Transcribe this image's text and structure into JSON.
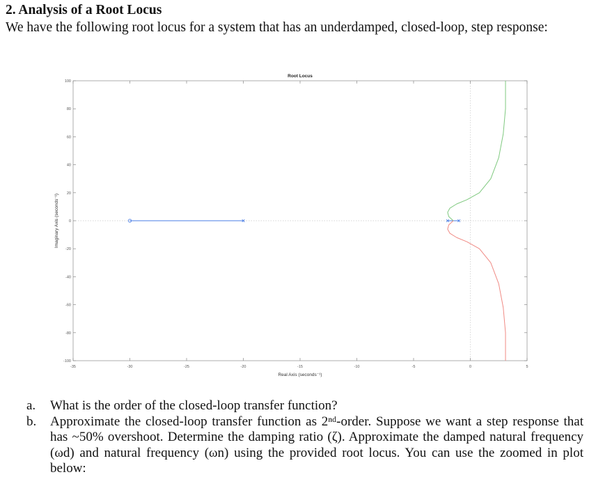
{
  "section": {
    "heading": "2. Analysis of a Root Locus",
    "intro": "We have the following root locus for a system that has an underdamped, closed-loop, step response:"
  },
  "chart_data": {
    "type": "line",
    "title": "Root Locus",
    "xlabel": "Real Axis (seconds⁻¹)",
    "ylabel": "Imaginary Axis (seconds⁻¹)",
    "xlim": [
      -35,
      5
    ],
    "ylim": [
      -100,
      100
    ],
    "xticks": [
      "-35",
      "-30",
      "-25",
      "-20",
      "-15",
      "-10",
      "-5",
      "0",
      "5"
    ],
    "yticks": [
      "100",
      "80",
      "60",
      "40",
      "20",
      "0",
      "-20",
      "-40",
      "-60",
      "-80",
      "-100"
    ],
    "grid": false,
    "poles": [
      [
        -20,
        0
      ],
      [
        -2,
        0
      ],
      [
        -1,
        0
      ]
    ],
    "zeros": [
      [
        -30,
        0
      ]
    ],
    "series": [
      {
        "color": "#4a7ee6",
        "x": [
          -20,
          -30
        ],
        "y": [
          0,
          0
        ]
      },
      {
        "color": "#4a7ee6",
        "x": [
          -2,
          -1.5
        ],
        "y": [
          0,
          0
        ]
      },
      {
        "color": "#4a7ee6",
        "x": [
          -1,
          -1.5
        ],
        "y": [
          0,
          0
        ]
      },
      {
        "color": "#7fc97f",
        "x": [
          -1.5,
          -1.9,
          -2.0,
          -1.8,
          -1.2,
          -0.3,
          0.8,
          1.8,
          2.5,
          2.9,
          3.1,
          3.1
        ],
        "y": [
          0,
          3,
          6,
          9,
          12,
          15,
          20,
          30,
          45,
          62,
          80,
          100
        ]
      },
      {
        "color": "#f08a84",
        "x": [
          -1.5,
          -1.9,
          -2.0,
          -1.8,
          -1.2,
          -0.3,
          0.8,
          1.8,
          2.5,
          2.9,
          3.1,
          3.1
        ],
        "y": [
          0,
          -3,
          -6,
          -9,
          -12,
          -15,
          -20,
          -30,
          -45,
          -62,
          -80,
          -100
        ]
      }
    ]
  },
  "questions": [
    {
      "label": "a.",
      "text": "What is the order of the closed-loop transfer function?"
    },
    {
      "label": "b.",
      "text": "Approximate the closed-loop transfer function as 2ⁿᵈ-order. Suppose we want a step response that has ~50% overshoot. Determine the damping ratio (ζ). Approximate the damped natural frequency (ωd) and natural frequency (ωn) using the provided root locus. You can use the zoomed in plot below:"
    }
  ]
}
